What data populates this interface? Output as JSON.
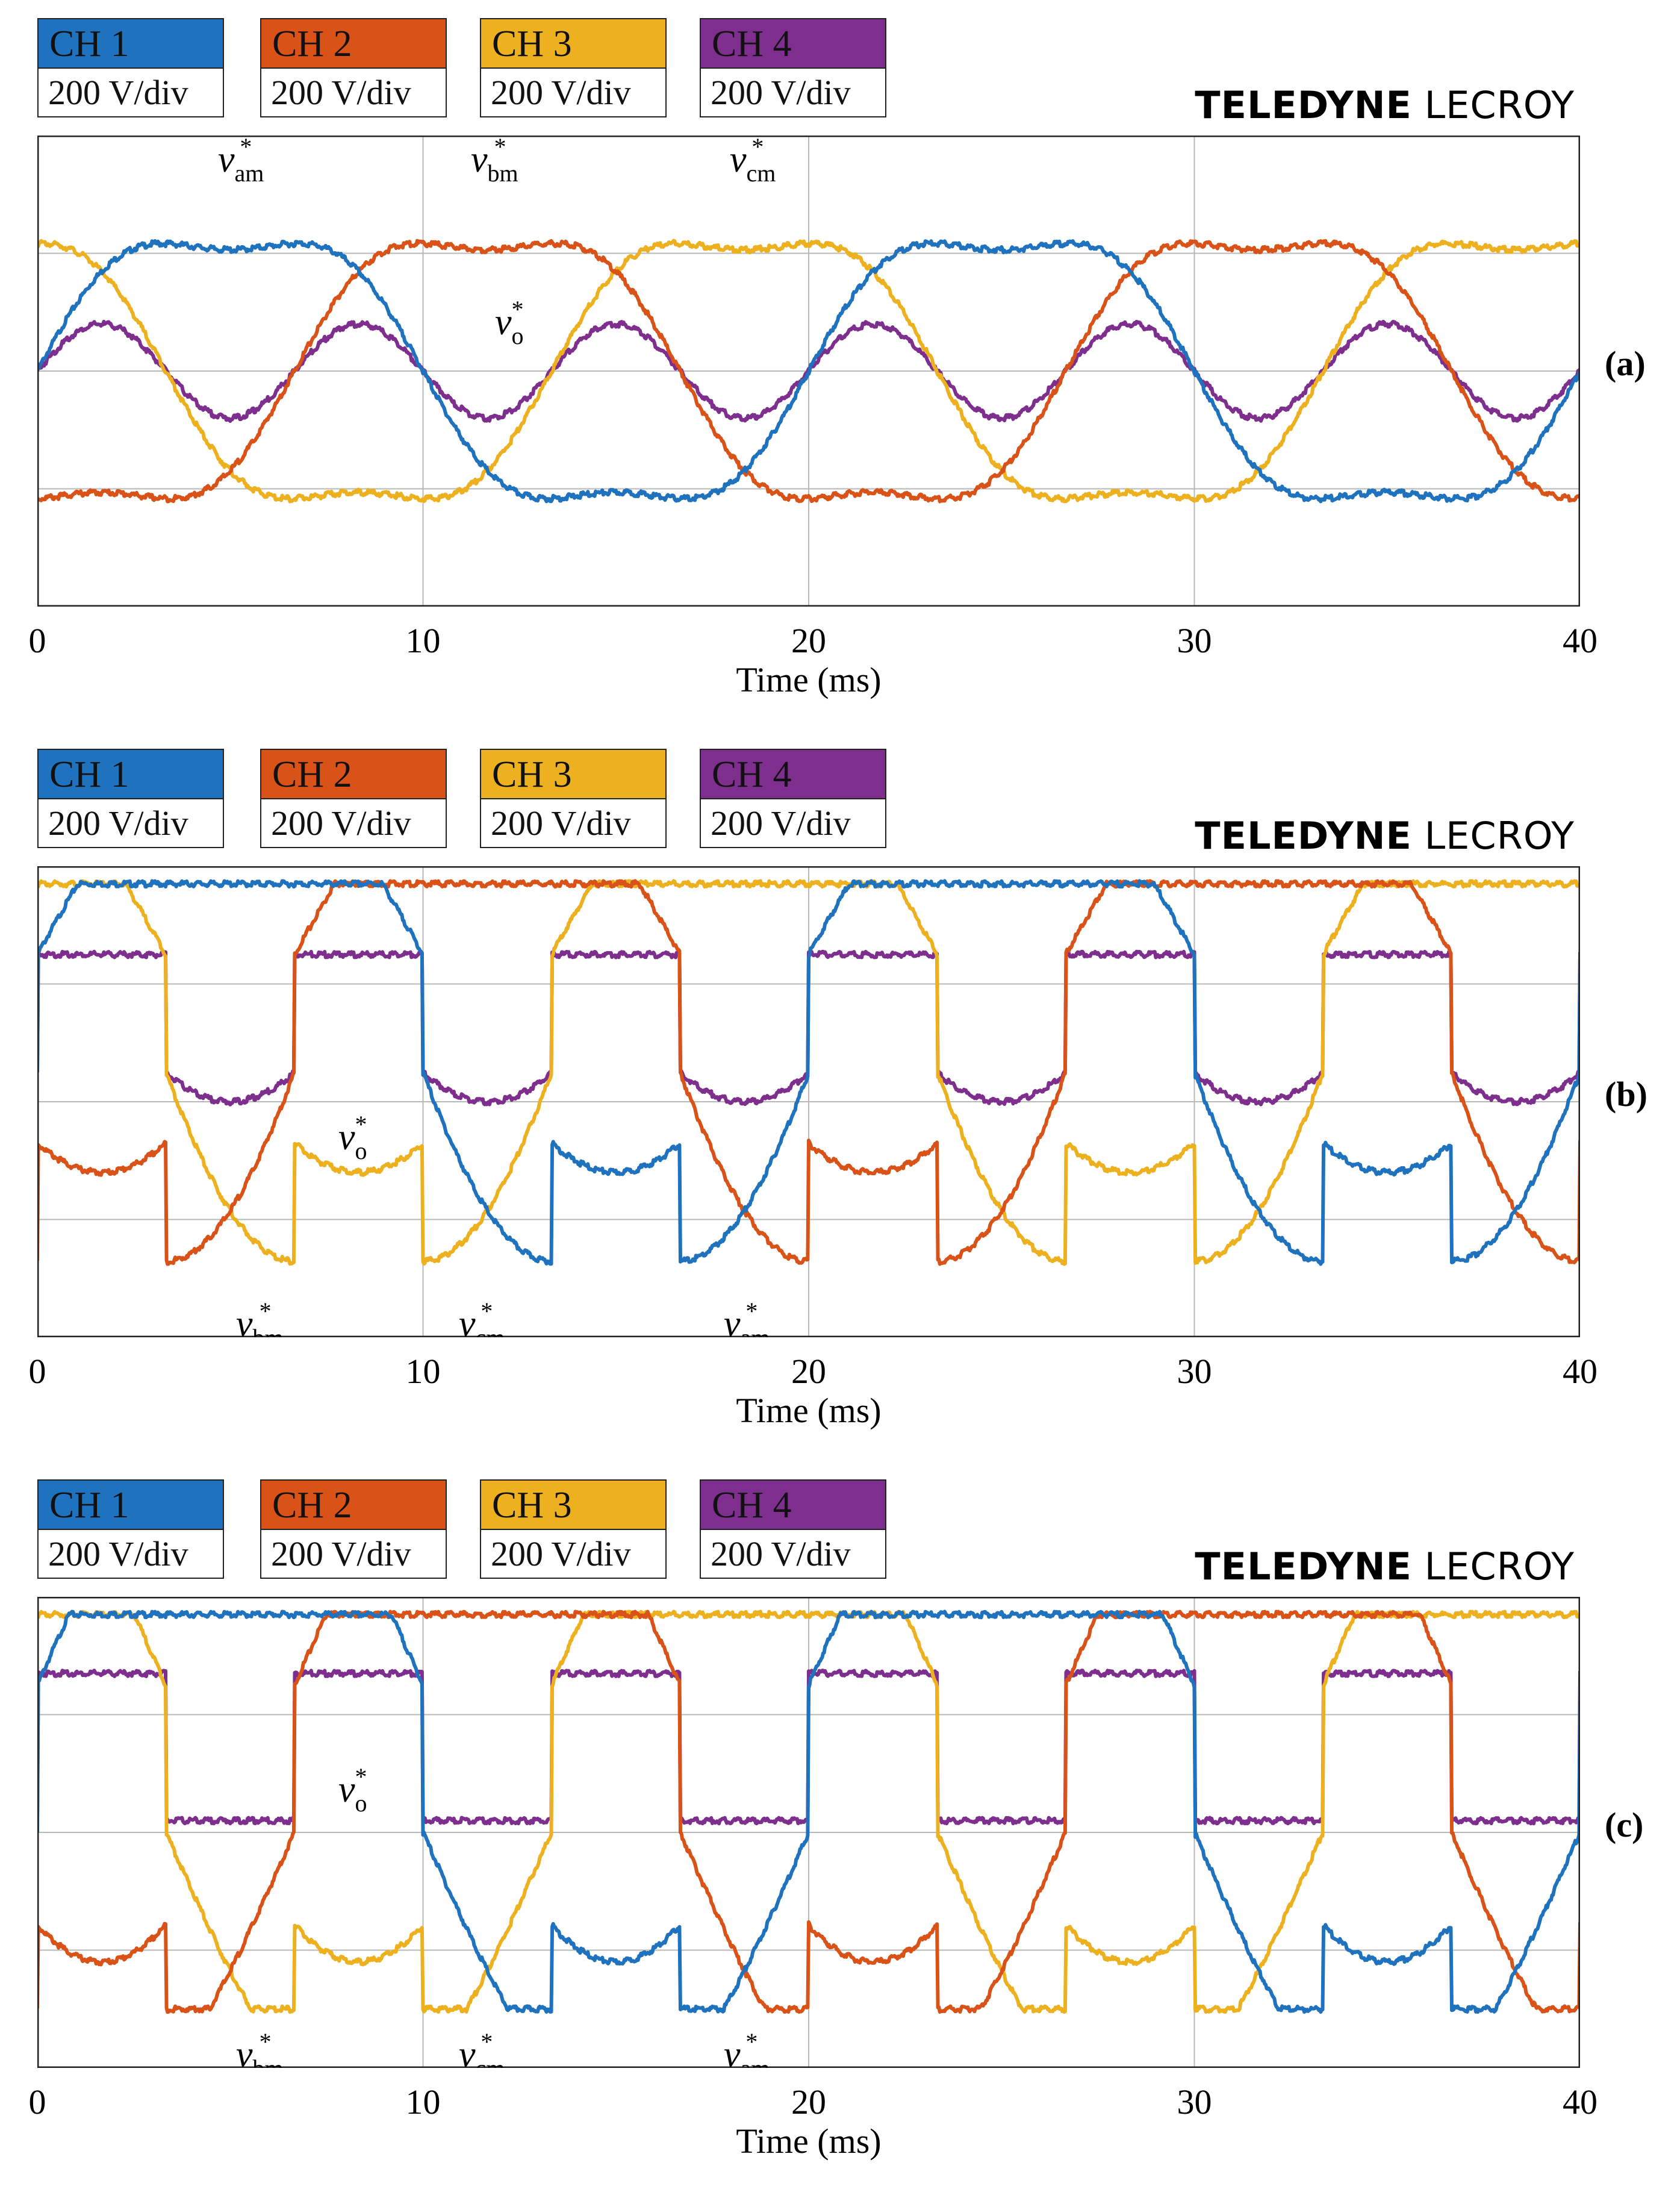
{
  "colors": {
    "ch1": "#1f72bd",
    "ch2": "#d95319",
    "ch3": "#edb120",
    "ch4": "#7e2f8e"
  },
  "channels": [
    {
      "label": "CH 1",
      "scale": "200 V/div"
    },
    {
      "label": "CH 2",
      "scale": "200 V/div"
    },
    {
      "label": "CH 3",
      "scale": "200 V/div"
    },
    {
      "label": "CH 4",
      "scale": "200 V/div"
    }
  ],
  "brand": {
    "bold": "TELEDYNE",
    "light": "LECROY"
  },
  "axis": {
    "xlabel": "Time (ms)",
    "xticks": [
      "0",
      "10",
      "20",
      "30",
      "40"
    ]
  },
  "chart_data": [
    {
      "type": "line",
      "panel": "(a)",
      "title": "",
      "xlabel": "Time (ms)",
      "ylabel": "",
      "xlim": [
        0,
        40
      ],
      "ylim": [
        -2,
        2
      ],
      "y_units": "div (200 V/div)",
      "grid": true,
      "series": [
        {
          "name": "CH 1",
          "signal": "v_am*",
          "waveform": "flat-top sine with third-harmonic injection, peak ~1.45 div, 50 Hz, phase 0"
        },
        {
          "name": "CH 2",
          "signal": "v_bm*",
          "waveform": "flat-top sine with third-harmonic injection, peak ~1.45 div, 50 Hz, phase -120 deg"
        },
        {
          "name": "CH 3",
          "signal": "v_cm*",
          "waveform": "flat-top sine with third-harmonic injection, peak ~1.45 div, 50 Hz, phase +120 deg"
        },
        {
          "name": "CH 4",
          "signal": "v_o*",
          "waveform": "third-harmonic, ~0.4 div amplitude, 150 Hz"
        }
      ],
      "annotations": [
        {
          "text": "v",
          "sub": "am",
          "sup": "*"
        },
        {
          "text": "v",
          "sub": "bm",
          "sup": "*"
        },
        {
          "text": "v",
          "sub": "cm",
          "sup": "*"
        },
        {
          "text": "v",
          "sub": "o",
          "sup": "*"
        }
      ]
    },
    {
      "type": "line",
      "panel": "(b)",
      "title": "",
      "xlabel": "Time (ms)",
      "ylabel": "",
      "xlim": [
        0,
        40
      ],
      "ylim": [
        -2,
        2
      ],
      "y_units": "div (200 V/div)",
      "grid": true,
      "series": [
        {
          "name": "CH 1",
          "signal": "v_am*",
          "waveform": "discontinuous (max/min clamped), peak ~1.85 div, 50 Hz, phase 0"
        },
        {
          "name": "CH 2",
          "signal": "v_bm*",
          "waveform": "discontinuous (max/min clamped), peak ~1.85 div, 50 Hz, phase -120 deg"
        },
        {
          "name": "CH 3",
          "signal": "v_cm*",
          "waveform": "discontinuous (max/min clamped), peak ~1.85 div, 50 Hz, phase +120 deg"
        },
        {
          "name": "CH 4",
          "signal": "v_o*",
          "waveform": "common-mode offset, range ~0 to 0.85 div, 150 Hz"
        }
      ],
      "annotations": [
        {
          "text": "v",
          "sub": "o",
          "sup": "*"
        },
        {
          "text": "v",
          "sub": "bm",
          "sup": "*"
        },
        {
          "text": "v",
          "sub": "cm",
          "sup": "*"
        },
        {
          "text": "v",
          "sub": "am",
          "sup": "*"
        }
      ]
    },
    {
      "type": "line",
      "panel": "(c)",
      "title": "",
      "xlabel": "Time (ms)",
      "ylabel": "",
      "xlim": [
        0,
        40
      ],
      "ylim": [
        -2,
        2
      ],
      "y_units": "div (200 V/div)",
      "grid": true,
      "series": [
        {
          "name": "CH 1",
          "signal": "v_am*",
          "waveform": "overmodulated discontinuous, clipped at ~1.85 div, 50 Hz, phase 0"
        },
        {
          "name": "CH 2",
          "signal": "v_bm*",
          "waveform": "overmodulated discontinuous, clipped at ~1.85 div, 50 Hz, phase -120 deg"
        },
        {
          "name": "CH 3",
          "signal": "v_cm*",
          "waveform": "overmodulated discontinuous, clipped at ~1.85 div, 50 Hz, phase +120 deg"
        },
        {
          "name": "CH 4",
          "signal": "v_o*",
          "waveform": "common-mode offset, range ~0.4 to 1.15 div, 150 Hz"
        }
      ],
      "annotations": [
        {
          "text": "v",
          "sub": "o",
          "sup": "*"
        },
        {
          "text": "v",
          "sub": "bm",
          "sup": "*"
        },
        {
          "text": "v",
          "sub": "cm",
          "sup": "*"
        },
        {
          "text": "v",
          "sub": "am",
          "sup": "*"
        }
      ]
    }
  ]
}
